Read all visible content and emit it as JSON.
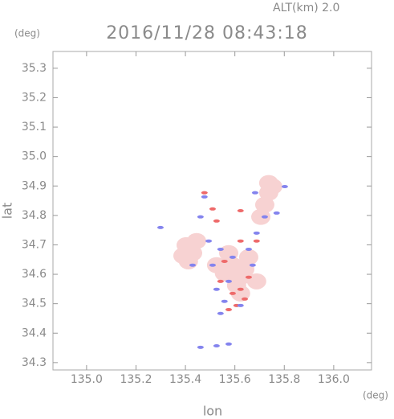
{
  "chart_data": {
    "type": "scatter",
    "title": "2016/11/28 08:43:18",
    "subtitle": "ALT(km) 2.0",
    "y_unit": "(deg)",
    "x_unit": "(deg)",
    "x_label": "lon",
    "y_label": "lat",
    "xlim": [
      134.864,
      136.153
    ],
    "ylim": [
      34.275,
      35.357
    ],
    "xticks": [
      {
        "value": 135,
        "label": "135.0"
      },
      135.2,
      135.4,
      135.6,
      135.8,
      {
        "value": 136,
        "label": "136.0"
      }
    ],
    "yticks": [
      34.3,
      34.4,
      34.5,
      34.6,
      34.7,
      34.8,
      34.9,
      {
        "value": 35,
        "label": "35.0"
      },
      35.1,
      35.2,
      35.3
    ],
    "series": [
      {
        "color": "#f7d2d2",
        "x": [
          135.403,
          135.429,
          135.412,
          135.445,
          135.39,
          135.591,
          135.623,
          135.558,
          135.656,
          135.607,
          135.575,
          135.64,
          135.526,
          135.688,
          135.623,
          135.737,
          135.721,
          135.705,
          135.737,
          135.753
        ],
        "y": [
          34.699,
          34.672,
          34.644,
          34.713,
          34.663,
          34.631,
          34.59,
          34.603,
          34.658,
          34.562,
          34.672,
          34.617,
          34.631,
          34.576,
          34.535,
          34.877,
          34.836,
          34.795,
          34.91,
          34.898
        ]
      },
      {
        "color": "#ee6a6a",
        "x": [
          135.591,
          135.623,
          135.542,
          135.656,
          135.575,
          135.607,
          135.51,
          135.526,
          135.623,
          135.688,
          135.558,
          135.64,
          135.623,
          135.477
        ],
        "y": [
          34.535,
          34.549,
          34.576,
          34.59,
          34.48,
          34.494,
          34.822,
          34.781,
          34.713,
          34.713,
          34.644,
          34.516,
          34.816,
          34.877
        ]
      },
      {
        "color": "#8484ee",
        "x": [
          135.494,
          135.542,
          135.51,
          135.591,
          135.656,
          135.672,
          135.526,
          135.575,
          135.558,
          135.623,
          135.682,
          135.721,
          135.769,
          135.802,
          135.461,
          135.429,
          135.542,
          135.461,
          135.526,
          135.575,
          135.477,
          135.688,
          135.299
        ],
        "y": [
          34.713,
          34.685,
          34.631,
          34.658,
          34.685,
          34.631,
          34.549,
          34.576,
          34.508,
          34.494,
          34.877,
          34.795,
          34.808,
          34.898,
          34.795,
          34.631,
          34.467,
          34.352,
          34.357,
          34.363,
          34.863,
          34.74,
          34.759
        ]
      }
    ]
  }
}
